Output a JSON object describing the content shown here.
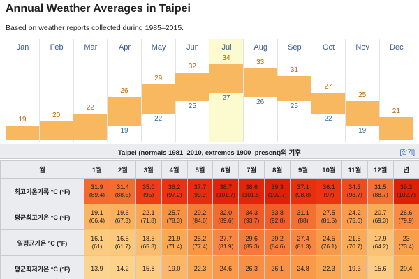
{
  "header": {
    "title": "Annual Weather Averages in Taipei",
    "subtitle": "Based on weather reports collected during 1985–2015."
  },
  "chart_data": {
    "type": "bar",
    "categories": [
      "Jan",
      "Feb",
      "Mar",
      "Apr",
      "May",
      "Jun",
      "Jul",
      "Aug",
      "Sep",
      "Oct",
      "Nov",
      "Dec"
    ],
    "series": [
      {
        "name": "high",
        "values": [
          19,
          20,
          22,
          26,
          29,
          32,
          34,
          33,
          31,
          27,
          25,
          21
        ]
      },
      {
        "name": "low",
        "values": [
          null,
          null,
          null,
          19,
          22,
          25,
          27,
          26,
          25,
          22,
          19,
          null
        ]
      }
    ],
    "highlighted_category": "Jul",
    "bar_color": "#f8b860",
    "highlight_color": "#fcfbd0",
    "ylim": [
      17,
      36
    ]
  },
  "table": {
    "caption": "Taipei (normals 1981–2010, extremes 1900–present)의 기후",
    "caption_link": "[참기]",
    "header_label": "월",
    "months": [
      "1월",
      "2월",
      "3월",
      "4월",
      "5월",
      "6월",
      "7월",
      "8월",
      "9월",
      "10월",
      "11월",
      "12월",
      "년"
    ],
    "rows": [
      {
        "label": "최고기온기록 °C (°F)",
        "values": [
          "31.9",
          "31.4",
          "35.0",
          "36.2",
          "37.7",
          "38.7",
          "38.6",
          "39.3",
          "37.1",
          "36.1",
          "34.3",
          "31.5",
          "39.3"
        ],
        "f": [
          "(89.4)",
          "(88.5)",
          "(95)",
          "(97.2)",
          "(99.9)",
          "(101.7)",
          "(101.5)",
          "(102.7)",
          "(98.8)",
          "(97)",
          "(93.7)",
          "(88.7)",
          "(102.7)"
        ],
        "colors": [
          "#f36a2e",
          "#f46d30",
          "#ee3c16",
          "#ec3213",
          "#e62d0f",
          "#e2230a",
          "#e2240a",
          "#e01f08",
          "#e8300f",
          "#ec3413",
          "#f04a1e",
          "#f46f32",
          "#e01f08"
        ]
      },
      {
        "label": "평균최고기온 °C (°F)",
        "values": [
          "19.1",
          "19.6",
          "22.1",
          "25.7",
          "29.2",
          "32.0",
          "34.3",
          "33.8",
          "31.1",
          "27.5",
          "24.2",
          "20.7",
          "26.6"
        ],
        "f": [
          "(66.4)",
          "(67.3)",
          "(71.8)",
          "(78.3)",
          "(84.6)",
          "(89.6)",
          "(93.7)",
          "(92.8)",
          "(88)",
          "(81.5)",
          "(75.6)",
          "(69.3)",
          "(79.9)"
        ],
        "colors": [
          "#fbb561",
          "#fbb15c",
          "#fba650",
          "#f9923f",
          "#f67d37",
          "#f46b30",
          "#f25a27",
          "#f25d28",
          "#f46f32",
          "#f88840",
          "#fa9c4a",
          "#fbac57",
          "#f88a41"
        ]
      },
      {
        "label": "일평균기온 °C (°F)",
        "values": [
          "16.1",
          "16.5",
          "18.5",
          "21.9",
          "25.2",
          "27.7",
          "29.6",
          "29.2",
          "27.4",
          "24.5",
          "21.5",
          "17.9",
          "23"
        ],
        "f": [
          "(61)",
          "(61.7)",
          "(65.3)",
          "(71.4)",
          "(77.4)",
          "(81.9)",
          "(85.3)",
          "(84.6)",
          "(81.3)",
          "(76.1)",
          "(70.7)",
          "(64.2)",
          "(73.4)"
        ],
        "colors": [
          "#fccb7e",
          "#fcc97b",
          "#fbbd6b",
          "#fba951",
          "#f99644",
          "#f88540",
          "#f67a37",
          "#f67c38",
          "#f88641",
          "#f99a48",
          "#fbab54",
          "#fcc274",
          "#fa9e4b"
        ]
      },
      {
        "label": "평균최저기온 °C (°F)",
        "values": [
          "13.9",
          "14.2",
          "15.8",
          "19.0",
          "22.3",
          "24.6",
          "26.3",
          "26.1",
          "24.8",
          "22.3",
          "19.3",
          "15.6",
          "20.4"
        ],
        "f": [
          "",
          "",
          "",
          "",
          "",
          "",
          "",
          "",
          "",
          "",
          "",
          "",
          ""
        ],
        "colors": [
          "#fdd48f",
          "#fdd38c",
          "#fccc80",
          "#fbb767",
          "#fba650",
          "#fa9a49",
          "#f98f43",
          "#f99044",
          "#fa9948",
          "#fba650",
          "#fbb665",
          "#fccd81",
          "#fbae59"
        ]
      }
    ]
  }
}
